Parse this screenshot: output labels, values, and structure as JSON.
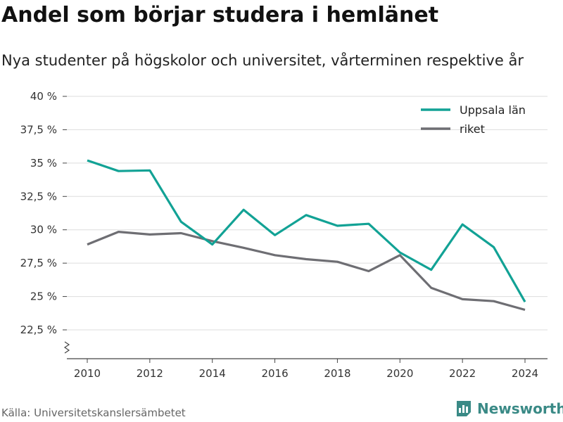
{
  "header": {
    "title": "Andel som börjar studera i hemlänet",
    "subtitle": "Nya studenter på högskolor och universitet, vårterminen respektive år"
  },
  "footer": {
    "source": "Källa: Universitetskanslersämbetet",
    "brand": "Newsworthy",
    "brand_icon": "bar-chart-logo-icon"
  },
  "colors": {
    "uppsala": "#12a295",
    "riket": "#6e6e73",
    "brand": "#3a8a86",
    "grid": "#dddddd"
  },
  "chart_data": {
    "type": "line",
    "title": "Andel som börjar studera i hemlänet",
    "subtitle": "Nya studenter på högskolor och universitet, vårterminen respektive år",
    "xlabel": "",
    "ylabel": "",
    "x": [
      2010,
      2011,
      2012,
      2013,
      2014,
      2015,
      2016,
      2017,
      2018,
      2019,
      2020,
      2021,
      2022,
      2023,
      2024
    ],
    "xlim": [
      2010,
      2024
    ],
    "xticks": [
      2010,
      2012,
      2014,
      2016,
      2018,
      2020,
      2022,
      2024
    ],
    "ylim": [
      22.5,
      40
    ],
    "ytick_values": [
      22.5,
      25,
      27.5,
      30,
      32.5,
      35,
      37.5,
      40
    ],
    "ytick_labels": [
      "22,5 %",
      "25 %",
      "27,5 %",
      "30 %",
      "32,5 %",
      "35 %",
      "37,5 %",
      "40 %"
    ],
    "axis_break": true,
    "grid": "horizontal",
    "legend_position": "top-right",
    "series": [
      {
        "name": "Uppsala län",
        "color": "#12a295",
        "values": [
          35.2,
          34.4,
          34.45,
          30.6,
          28.9,
          31.5,
          29.6,
          31.1,
          30.3,
          30.45,
          28.3,
          27.0,
          30.4,
          28.7,
          24.6
        ]
      },
      {
        "name": "riket",
        "color": "#6e6e73",
        "values": [
          28.9,
          29.85,
          29.65,
          29.75,
          29.15,
          28.65,
          28.1,
          27.8,
          27.6,
          26.9,
          28.1,
          25.65,
          24.8,
          24.65,
          24.0
        ]
      }
    ]
  }
}
